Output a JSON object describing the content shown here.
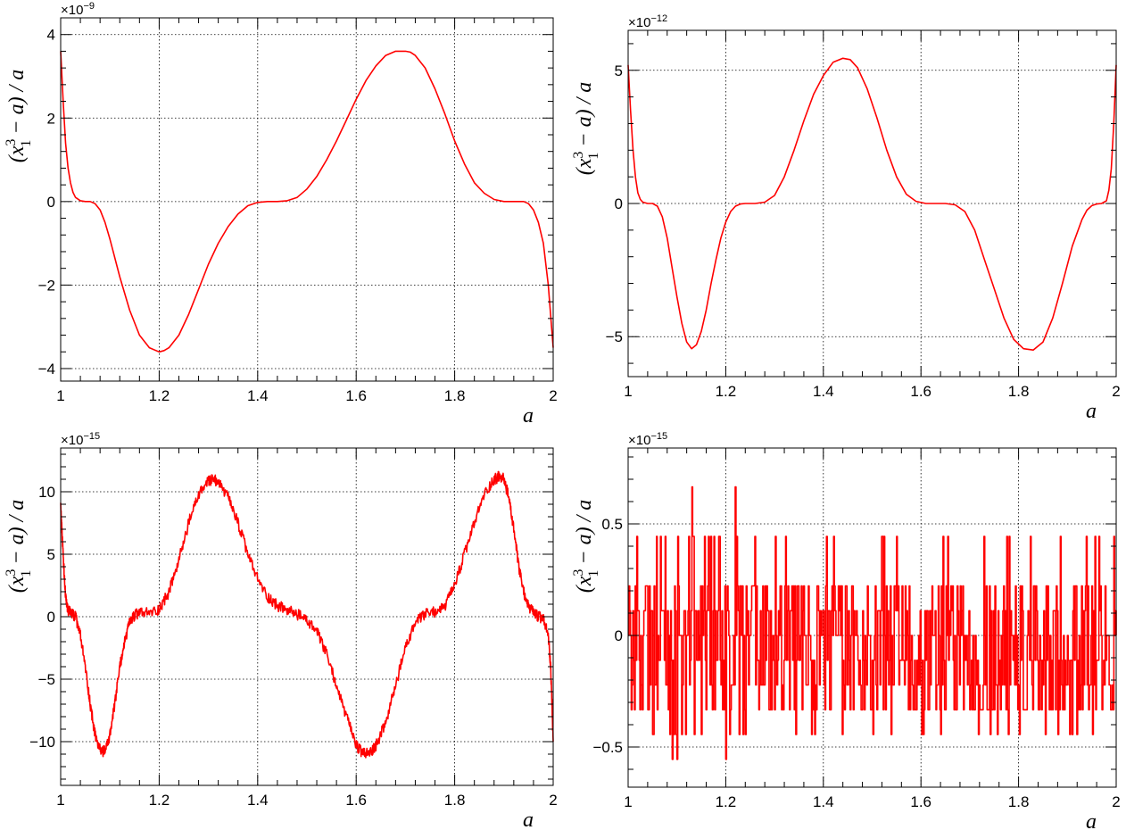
{
  "figure": {
    "background": "#ffffff",
    "line_color": "#ff0000"
  },
  "chart_data": [
    {
      "type": "line",
      "xlabel": "a",
      "ylabel": "(x_1^3 − a) / a",
      "ylabel_parts": {
        "open": "(",
        "var": "x",
        "sub": "1",
        "sup": "3",
        "rest": " − a) / a"
      },
      "multiplier": {
        "base": "×10",
        "exp": "−9"
      },
      "xlim": [
        1,
        2
      ],
      "ylim": [
        -4.3,
        4.4
      ],
      "xticks": [
        1,
        1.2,
        1.4,
        1.6,
        1.8,
        2
      ],
      "xtick_labels": [
        "1",
        "1.2",
        "1.4",
        "1.6",
        "1.8",
        "2"
      ],
      "yticks": [
        -4,
        -2,
        0,
        2,
        4
      ],
      "ytick_labels": [
        "−4",
        "−2",
        "0",
        "2",
        "4"
      ],
      "grid": true,
      "series": [
        {
          "color": "#ff0000",
          "x": [
            1.0,
            1.005,
            1.01,
            1.015,
            1.02,
            1.025,
            1.03,
            1.04,
            1.05,
            1.06,
            1.07,
            1.08,
            1.09,
            1.1,
            1.12,
            1.14,
            1.16,
            1.18,
            1.2,
            1.21,
            1.22,
            1.24,
            1.26,
            1.28,
            1.3,
            1.32,
            1.34,
            1.36,
            1.38,
            1.4,
            1.42,
            1.44,
            1.46,
            1.48,
            1.5,
            1.52,
            1.54,
            1.56,
            1.58,
            1.6,
            1.62,
            1.64,
            1.66,
            1.68,
            1.7,
            1.71,
            1.72,
            1.74,
            1.76,
            1.78,
            1.8,
            1.82,
            1.84,
            1.86,
            1.88,
            1.9,
            1.91,
            1.92,
            1.93,
            1.94,
            1.95,
            1.96,
            1.97,
            1.98,
            1.99,
            2.0
          ],
          "y": [
            3.6,
            2.4,
            1.4,
            0.8,
            0.45,
            0.22,
            0.1,
            0.02,
            0.0,
            0.0,
            -0.05,
            -0.2,
            -0.5,
            -0.9,
            -1.8,
            -2.6,
            -3.2,
            -3.5,
            -3.6,
            -3.57,
            -3.5,
            -3.2,
            -2.7,
            -2.1,
            -1.5,
            -1.0,
            -0.6,
            -0.3,
            -0.1,
            -0.02,
            0.0,
            0.0,
            0.02,
            0.1,
            0.3,
            0.6,
            1.0,
            1.45,
            1.95,
            2.45,
            2.9,
            3.25,
            3.5,
            3.6,
            3.6,
            3.58,
            3.5,
            3.2,
            2.7,
            2.1,
            1.45,
            0.9,
            0.45,
            0.2,
            0.05,
            0.0,
            0.0,
            0.0,
            0.0,
            0.0,
            -0.05,
            -0.2,
            -0.5,
            -1.0,
            -2.0,
            -3.5
          ]
        }
      ]
    },
    {
      "type": "line",
      "xlabel": "a",
      "ylabel": "(x_1^3 − a) / a",
      "ylabel_parts": {
        "open": "(",
        "var": "x",
        "sub": "1",
        "sup": "3",
        "rest": " − a) / a"
      },
      "multiplier": {
        "base": "×10",
        "exp": "−12"
      },
      "xlim": [
        1,
        2
      ],
      "ylim": [
        -6.5,
        6.5
      ],
      "xticks": [
        1,
        1.2,
        1.4,
        1.6,
        1.8,
        2
      ],
      "xtick_labels": [
        "1",
        "1.2",
        "1.4",
        "1.6",
        "1.8",
        "2"
      ],
      "yticks": [
        -5,
        0,
        5
      ],
      "ytick_labels": [
        "−5",
        "0",
        "5"
      ],
      "grid": true,
      "series": [
        {
          "color": "#ff0000",
          "x": [
            1.0,
            1.005,
            1.01,
            1.015,
            1.02,
            1.025,
            1.03,
            1.04,
            1.05,
            1.06,
            1.07,
            1.08,
            1.09,
            1.1,
            1.11,
            1.12,
            1.13,
            1.14,
            1.15,
            1.16,
            1.17,
            1.18,
            1.19,
            1.2,
            1.21,
            1.22,
            1.23,
            1.24,
            1.25,
            1.26,
            1.28,
            1.3,
            1.32,
            1.34,
            1.36,
            1.38,
            1.4,
            1.42,
            1.44,
            1.455,
            1.47,
            1.49,
            1.51,
            1.53,
            1.55,
            1.57,
            1.59,
            1.61,
            1.63,
            1.65,
            1.67,
            1.69,
            1.71,
            1.73,
            1.75,
            1.77,
            1.79,
            1.81,
            1.83,
            1.85,
            1.87,
            1.89,
            1.91,
            1.93,
            1.94,
            1.95,
            1.96,
            1.97,
            1.98,
            1.985,
            1.99,
            1.995,
            2.0
          ],
          "y": [
            5.2,
            3.5,
            2.0,
            1.0,
            0.4,
            0.15,
            0.05,
            0.0,
            0.0,
            -0.1,
            -0.5,
            -1.3,
            -2.4,
            -3.5,
            -4.5,
            -5.2,
            -5.45,
            -5.3,
            -4.8,
            -4.0,
            -3.0,
            -2.1,
            -1.3,
            -0.7,
            -0.3,
            -0.1,
            -0.02,
            0.0,
            0.0,
            0.0,
            0.05,
            0.3,
            1.0,
            2.0,
            3.1,
            4.1,
            4.8,
            5.3,
            5.45,
            5.4,
            5.1,
            4.3,
            3.2,
            2.0,
            1.0,
            0.35,
            0.08,
            0.0,
            0.0,
            0.0,
            -0.05,
            -0.3,
            -1.0,
            -2.1,
            -3.2,
            -4.3,
            -5.1,
            -5.45,
            -5.5,
            -5.2,
            -4.3,
            -3.0,
            -1.6,
            -0.6,
            -0.25,
            -0.08,
            -0.02,
            0.0,
            0.1,
            0.5,
            1.3,
            3.0,
            5.2
          ]
        }
      ]
    },
    {
      "type": "line",
      "xlabel": "a",
      "ylabel": "(x_1^3 − a) / a",
      "ylabel_parts": {
        "open": "(",
        "var": "x",
        "sub": "1",
        "sup": "3",
        "rest": " − a) / a"
      },
      "multiplier": {
        "base": "×10",
        "exp": "−15"
      },
      "xlim": [
        1,
        2
      ],
      "ylim": [
        -13.5,
        13.5
      ],
      "xticks": [
        1,
        1.2,
        1.4,
        1.6,
        1.8,
        2
      ],
      "xtick_labels": [
        "1",
        "1.2",
        "1.4",
        "1.6",
        "1.8",
        "2"
      ],
      "yticks": [
        -10,
        -5,
        0,
        5,
        10
      ],
      "ytick_labels": [
        "−10",
        "−5",
        "0",
        "5",
        "10"
      ],
      "grid": true,
      "series": [
        {
          "color": "#ff0000",
          "x": [
            1.0,
            1.005,
            1.01,
            1.015,
            1.02,
            1.03,
            1.04,
            1.05,
            1.06,
            1.07,
            1.08,
            1.09,
            1.1,
            1.11,
            1.12,
            1.13,
            1.14,
            1.15,
            1.16,
            1.18,
            1.2,
            1.22,
            1.24,
            1.26,
            1.28,
            1.3,
            1.31,
            1.32,
            1.34,
            1.36,
            1.38,
            1.4,
            1.42,
            1.44,
            1.46,
            1.48,
            1.5,
            1.52,
            1.54,
            1.56,
            1.58,
            1.6,
            1.61,
            1.62,
            1.63,
            1.64,
            1.66,
            1.68,
            1.7,
            1.72,
            1.74,
            1.76,
            1.78,
            1.8,
            1.82,
            1.84,
            1.86,
            1.88,
            1.89,
            1.9,
            1.91,
            1.92,
            1.93,
            1.94,
            1.95,
            1.96,
            1.97,
            1.98,
            1.99,
            1.995,
            2.0
          ],
          "y": [
            9.0,
            5.0,
            1.5,
            0.5,
            0.3,
            0.0,
            -1.5,
            -4.0,
            -7.0,
            -9.5,
            -10.7,
            -10.8,
            -9.5,
            -7.0,
            -4.0,
            -2.0,
            -0.5,
            0.1,
            0.3,
            0.3,
            0.6,
            2.0,
            4.5,
            7.5,
            9.8,
            10.8,
            11.0,
            10.8,
            9.5,
            7.5,
            5.0,
            3.0,
            1.6,
            0.9,
            0.5,
            0.2,
            -0.3,
            -1.2,
            -3.0,
            -5.5,
            -8.0,
            -10.3,
            -10.8,
            -11.0,
            -10.8,
            -10.3,
            -8.5,
            -5.5,
            -2.5,
            -0.5,
            0.2,
            0.4,
            0.8,
            2.5,
            5.0,
            7.5,
            9.8,
            11.0,
            11.2,
            11.0,
            9.5,
            7.0,
            4.0,
            2.0,
            0.8,
            0.3,
            0.0,
            -0.2,
            -1.5,
            -4.0,
            -10.0
          ]
        }
      ]
    },
    {
      "type": "line",
      "xlabel": "a",
      "ylabel": "(x_1^3 − a) / a",
      "ylabel_parts": {
        "open": "(",
        "var": "x",
        "sub": "1",
        "sup": "3",
        "rest": " − a) / a"
      },
      "multiplier": {
        "base": "×10",
        "exp": "−15"
      },
      "xlim": [
        1,
        2
      ],
      "ylim": [
        -0.68,
        0.84
      ],
      "xticks": [
        1,
        1.2,
        1.4,
        1.6,
        1.8,
        2
      ],
      "xtick_labels": [
        "1",
        "1.2",
        "1.4",
        "1.6",
        "1.8",
        "2"
      ],
      "yticks": [
        -0.5,
        0,
        0.5
      ],
      "ytick_labels": [
        "−0.5",
        "0",
        "0.5"
      ],
      "grid": true,
      "quantized_levels": [
        -0.555,
        -0.444,
        -0.333,
        -0.222,
        -0.111,
        0,
        0.111,
        0.222,
        0.444,
        0.666
      ],
      "spikes": [
        {
          "x": 1.13,
          "y": 0.666
        },
        {
          "x": 1.22,
          "y": 0.666
        },
        {
          "x": 1.09,
          "y": -0.555
        },
        {
          "x": 1.1,
          "y": -0.555
        },
        {
          "x": 1.2,
          "y": -0.555
        }
      ],
      "series": [
        {
          "color": "#ff0000",
          "x": [],
          "y": []
        }
      ]
    }
  ]
}
